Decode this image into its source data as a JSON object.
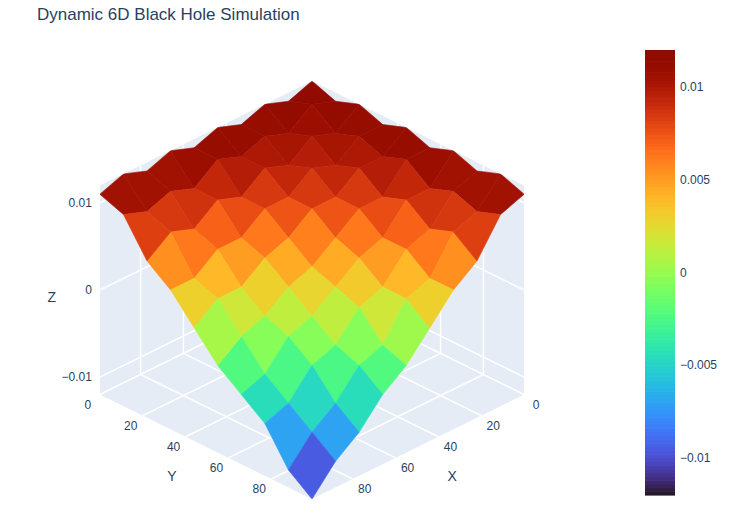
{
  "chart_data": {
    "type": "surface",
    "title": "Dynamic 6D Black Hole Simulation",
    "x_label": "X",
    "y_label": "Y",
    "z_label": "Z",
    "x": [
      0,
      11,
      22,
      33,
      44,
      55,
      66,
      77,
      88,
      99
    ],
    "y": [
      0,
      11,
      22,
      33,
      44,
      55,
      66,
      77,
      88,
      99
    ],
    "z": [
      [
        0.012,
        0.011,
        0.012,
        0.011,
        0.012,
        0.011,
        0.012,
        0.011,
        0.012,
        0.011
      ],
      [
        0.011,
        0.012,
        0.01,
        0.011,
        0.01,
        0.011,
        0.009,
        0.01,
        0.009,
        0.01
      ],
      [
        0.012,
        0.01,
        0.011,
        0.009,
        0.01,
        0.008,
        0.009,
        0.007,
        0.008,
        0.006
      ],
      [
        0.011,
        0.011,
        0.009,
        0.01,
        0.008,
        0.008,
        0.006,
        0.006,
        0.004,
        0.004
      ],
      [
        0.012,
        0.01,
        0.01,
        0.008,
        0.008,
        0.006,
        0.005,
        0.003,
        0.003,
        0.001
      ],
      [
        0.011,
        0.011,
        0.008,
        0.008,
        0.006,
        0.004,
        0.003,
        0.001,
        0.0,
        -0.002
      ],
      [
        0.012,
        0.009,
        0.009,
        0.006,
        0.005,
        0.003,
        0.001,
        0.0,
        -0.003,
        -0.004
      ],
      [
        0.011,
        0.01,
        0.007,
        0.006,
        0.003,
        0.002,
        -0.001,
        -0.002,
        -0.005,
        -0.006
      ],
      [
        0.012,
        0.009,
        0.008,
        0.004,
        0.003,
        -0.001,
        -0.002,
        -0.005,
        -0.007,
        -0.01
      ],
      [
        0.011,
        0.01,
        0.006,
        0.004,
        0.001,
        -0.002,
        -0.004,
        -0.007,
        -0.009,
        -0.012
      ]
    ],
    "xlim": [
      0,
      99
    ],
    "ylim": [
      0,
      99
    ],
    "zlim": [
      -0.012,
      0.012
    ],
    "xticks": [
      0,
      20,
      40,
      60,
      80
    ],
    "yticks": [
      0,
      20,
      40,
      60,
      80
    ],
    "zticks": [
      {
        "value": -0.01,
        "label": "−0.01"
      },
      {
        "value": 0,
        "label": "0"
      },
      {
        "value": 0.01,
        "label": "0.01"
      }
    ],
    "color": "turbo",
    "color_range": [
      -0.012,
      0.012
    ],
    "color_ticks": [
      {
        "value": -0.01,
        "label": "−0.01"
      },
      {
        "value": -0.005,
        "label": "−0.005"
      },
      {
        "value": 0,
        "label": "0"
      },
      {
        "value": 0.005,
        "label": "0.005"
      },
      {
        "value": 0.01,
        "label": "0.01"
      }
    ],
    "grid": true
  }
}
